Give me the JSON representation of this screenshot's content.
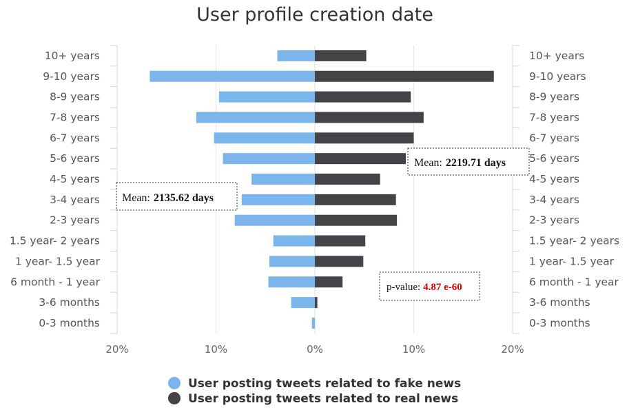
{
  "chart_data": {
    "type": "bar",
    "orientation": "horizontal-butterfly",
    "title": "User profile creation date",
    "categories": [
      "10+ years",
      "9-10 years",
      "8-9 years",
      "7-8 years",
      "6-7 years",
      "5-6 years",
      "4-5 years",
      "3-4 years",
      "2-3 years",
      "1.5 year- 2 years",
      "1 year- 1.5 year",
      "6 month - 1 year",
      "3-6 months",
      "0-3 months"
    ],
    "series": [
      {
        "name": "User posting tweets related to fake news",
        "side": "left",
        "color": "#7cb5ec",
        "values": [
          3.8,
          16.7,
          9.7,
          12.0,
          10.2,
          9.3,
          6.4,
          7.4,
          8.1,
          4.2,
          4.6,
          4.7,
          2.4,
          0.3
        ]
      },
      {
        "name": "User posting tweets related to real news",
        "side": "right",
        "color": "#434348",
        "values": [
          5.2,
          18.1,
          9.7,
          11.0,
          10.0,
          9.2,
          6.6,
          8.2,
          8.3,
          5.1,
          4.9,
          2.8,
          0.25,
          0.0
        ]
      }
    ],
    "xlim": [
      -20,
      20
    ],
    "x_ticks": [
      "20%",
      "10%",
      "0%",
      "10%",
      "20%"
    ],
    "grid": true,
    "legend_position": "bottom-center",
    "annotations": {
      "real_mean_prefix": "Mean:",
      "real_mean_value": "2219.71 days",
      "fake_mean_prefix": "Mean:",
      "fake_mean_value": "2135.62 days",
      "pvalue_prefix": "p-value:",
      "pvalue_value": "4.87 e-60"
    }
  }
}
